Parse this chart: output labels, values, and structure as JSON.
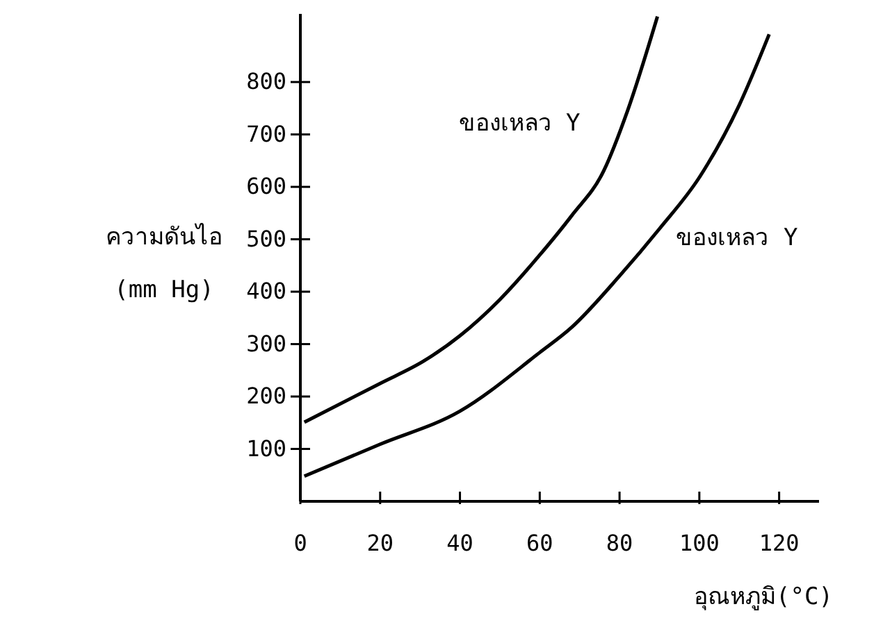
{
  "chart_data": {
    "type": "line",
    "xlabel": "อุณหภูมิ(°C)",
    "ylabel": "ความดันไอ (mm Hg)",
    "xlim": [
      0,
      130
    ],
    "xticks": [
      0,
      20,
      40,
      60,
      80,
      100,
      120
    ],
    "ylim": [
      0,
      930
    ],
    "yticks": [
      100,
      200,
      300,
      400,
      500,
      600,
      700,
      800
    ],
    "grid": false,
    "legend": false,
    "marker": "none",
    "line_style": "solid",
    "series": [
      {
        "name": "ของเหลว Y",
        "color": "#000000",
        "x": [
          1,
          20,
          31,
          40,
          50,
          60,
          68,
          76,
          82,
          89.5
        ],
        "values": [
          151,
          225,
          268,
          316,
          385,
          470,
          545,
          630,
          745,
          925
        ]
      },
      {
        "name": "ของเหลว Y",
        "color": "#000000",
        "x": [
          1,
          20,
          40,
          60,
          68,
          80,
          90,
          100,
          110,
          117.5
        ],
        "values": [
          48,
          109,
          172,
          284,
          332,
          430,
          520,
          618,
          756,
          891
        ]
      }
    ]
  }
}
